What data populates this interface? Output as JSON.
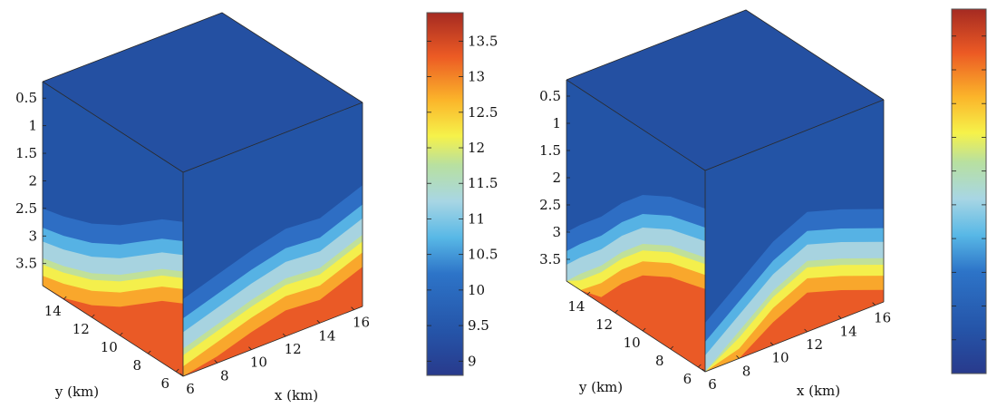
{
  "chart_data": [
    {
      "type": "heatmap",
      "title": "",
      "xlabel": "x (km)",
      "ylabel": "y (km)",
      "zlabel": "",
      "x_ticks": [
        "6",
        "8",
        "10",
        "12",
        "14",
        "16"
      ],
      "y_ticks": [
        "6",
        "8",
        "10",
        "12",
        "14"
      ],
      "z_ticks": [
        "0.5",
        "1",
        "1.5",
        "2",
        "2.5",
        "3",
        "3.5"
      ],
      "xlim": [
        6,
        16.5
      ],
      "ylim": [
        5.5,
        15.5
      ],
      "zlim": [
        0.2,
        3.9
      ],
      "colorbar": {
        "range": [
          8.8,
          13.9
        ],
        "ticks": [
          "9",
          "9.5",
          "10",
          "10.5",
          "11",
          "11.5",
          "12",
          "12.5",
          "13",
          "13.5"
        ]
      },
      "front_face_profile": [
        {
          "y": 5.5,
          "z": 2.0
        },
        {
          "y": 7,
          "z": 2.2
        },
        {
          "y": 8.5,
          "z": 2.5
        },
        {
          "y": 10,
          "z": 2.8
        },
        {
          "y": 12,
          "z": 3.1
        },
        {
          "y": 14,
          "z": 3.3
        },
        {
          "y": 15.5,
          "z": 3.4
        }
      ],
      "right_face_profile": [
        {
          "x": 6,
          "z": 3.4
        },
        {
          "x": 8,
          "z": 3.2
        },
        {
          "x": 10,
          "z": 3.0
        },
        {
          "x": 12,
          "z": 2.85
        },
        {
          "x": 14,
          "z": 2.9
        },
        {
          "x": 16.5,
          "z": 2.6
        }
      ]
    },
    {
      "type": "heatmap",
      "title": "",
      "xlabel": "x (km)",
      "ylabel": "y (km)",
      "zlabel": "",
      "x_ticks": [
        "6",
        "8",
        "10",
        "12",
        "14",
        "16"
      ],
      "y_ticks": [
        "6",
        "8",
        "10",
        "12",
        "14"
      ],
      "z_ticks": [
        "0.5",
        "1",
        "1.5",
        "2",
        "2.5",
        "3",
        "3.5"
      ],
      "xlim": [
        6,
        16.5
      ],
      "ylim": [
        5.5,
        15.5
      ],
      "zlim": [
        0.2,
        3.9
      ],
      "colorbar": {
        "range": [
          8.8,
          13.9
        ],
        "ticks": []
      },
      "front_face_profile": [
        {
          "y": 5.5,
          "z": 1.8
        },
        {
          "y": 8,
          "z": 2.0
        },
        {
          "y": 10,
          "z": 2.3
        },
        {
          "y": 11.5,
          "z": 2.7
        },
        {
          "y": 13,
          "z": 3.2
        },
        {
          "y": 14.5,
          "z": 3.6
        },
        {
          "y": 15.5,
          "z": 3.9
        }
      ],
      "right_face_profile": [
        {
          "x": 6,
          "z": 3.9
        },
        {
          "x": 8,
          "z": 3.4
        },
        {
          "x": 10,
          "z": 2.9
        },
        {
          "x": 12,
          "z": 2.6
        },
        {
          "x": 14,
          "z": 2.8
        },
        {
          "x": 16.5,
          "z": 3.1
        }
      ]
    }
  ]
}
